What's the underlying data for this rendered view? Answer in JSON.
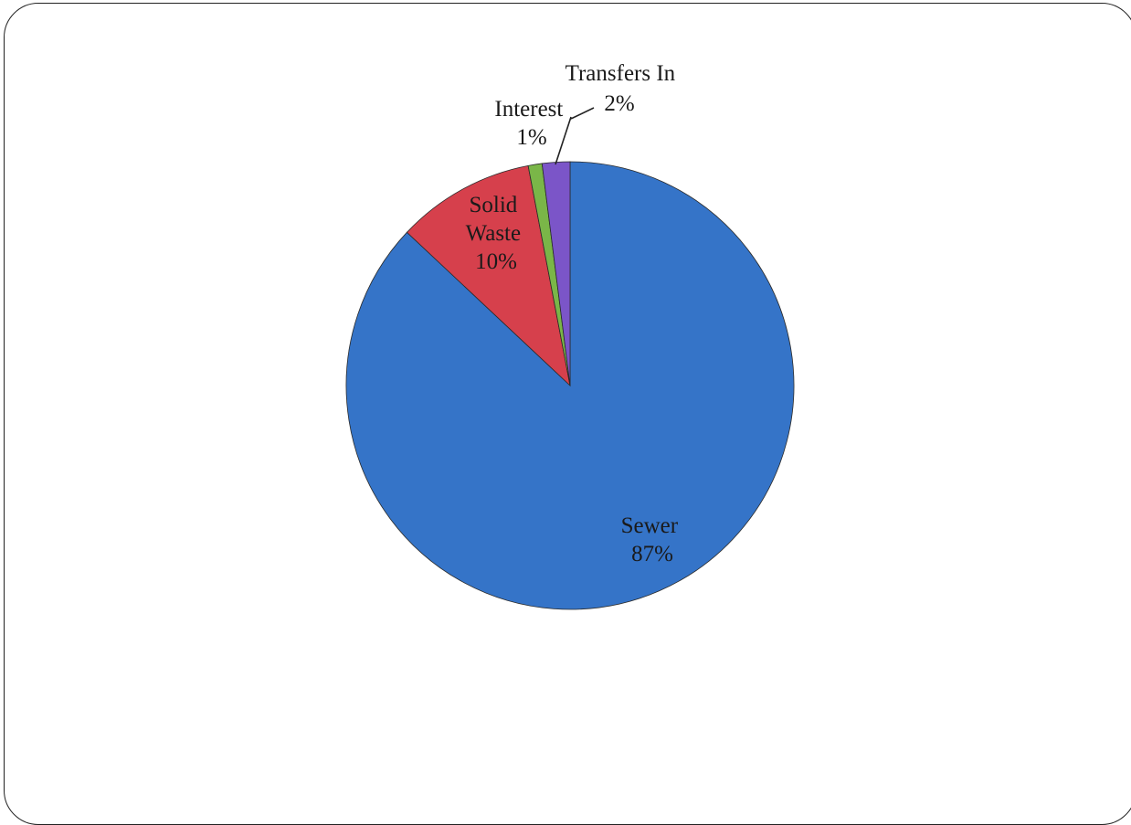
{
  "chart_data": {
    "type": "pie",
    "title": "",
    "series": [
      {
        "values": [
          87,
          10,
          1,
          2
        ],
        "categories": [
          "Sewer",
          "Solid Waste",
          "Interest",
          "Transfers In"
        ],
        "colors": [
          "#3574c8",
          "#d6404c",
          "#7ab648",
          "#7b55c8"
        ]
      }
    ],
    "labels": [
      {
        "lines": [
          "Sewer",
          "87%"
        ]
      },
      {
        "lines": [
          "Solid",
          "Waste",
          "10%"
        ]
      },
      {
        "lines": [
          "Interest",
          "1%"
        ]
      },
      {
        "lines": [
          "Transfers In",
          "2%"
        ]
      }
    ],
    "start_angle": "12 o'clock",
    "direction": "clockwise",
    "legend": "none"
  }
}
